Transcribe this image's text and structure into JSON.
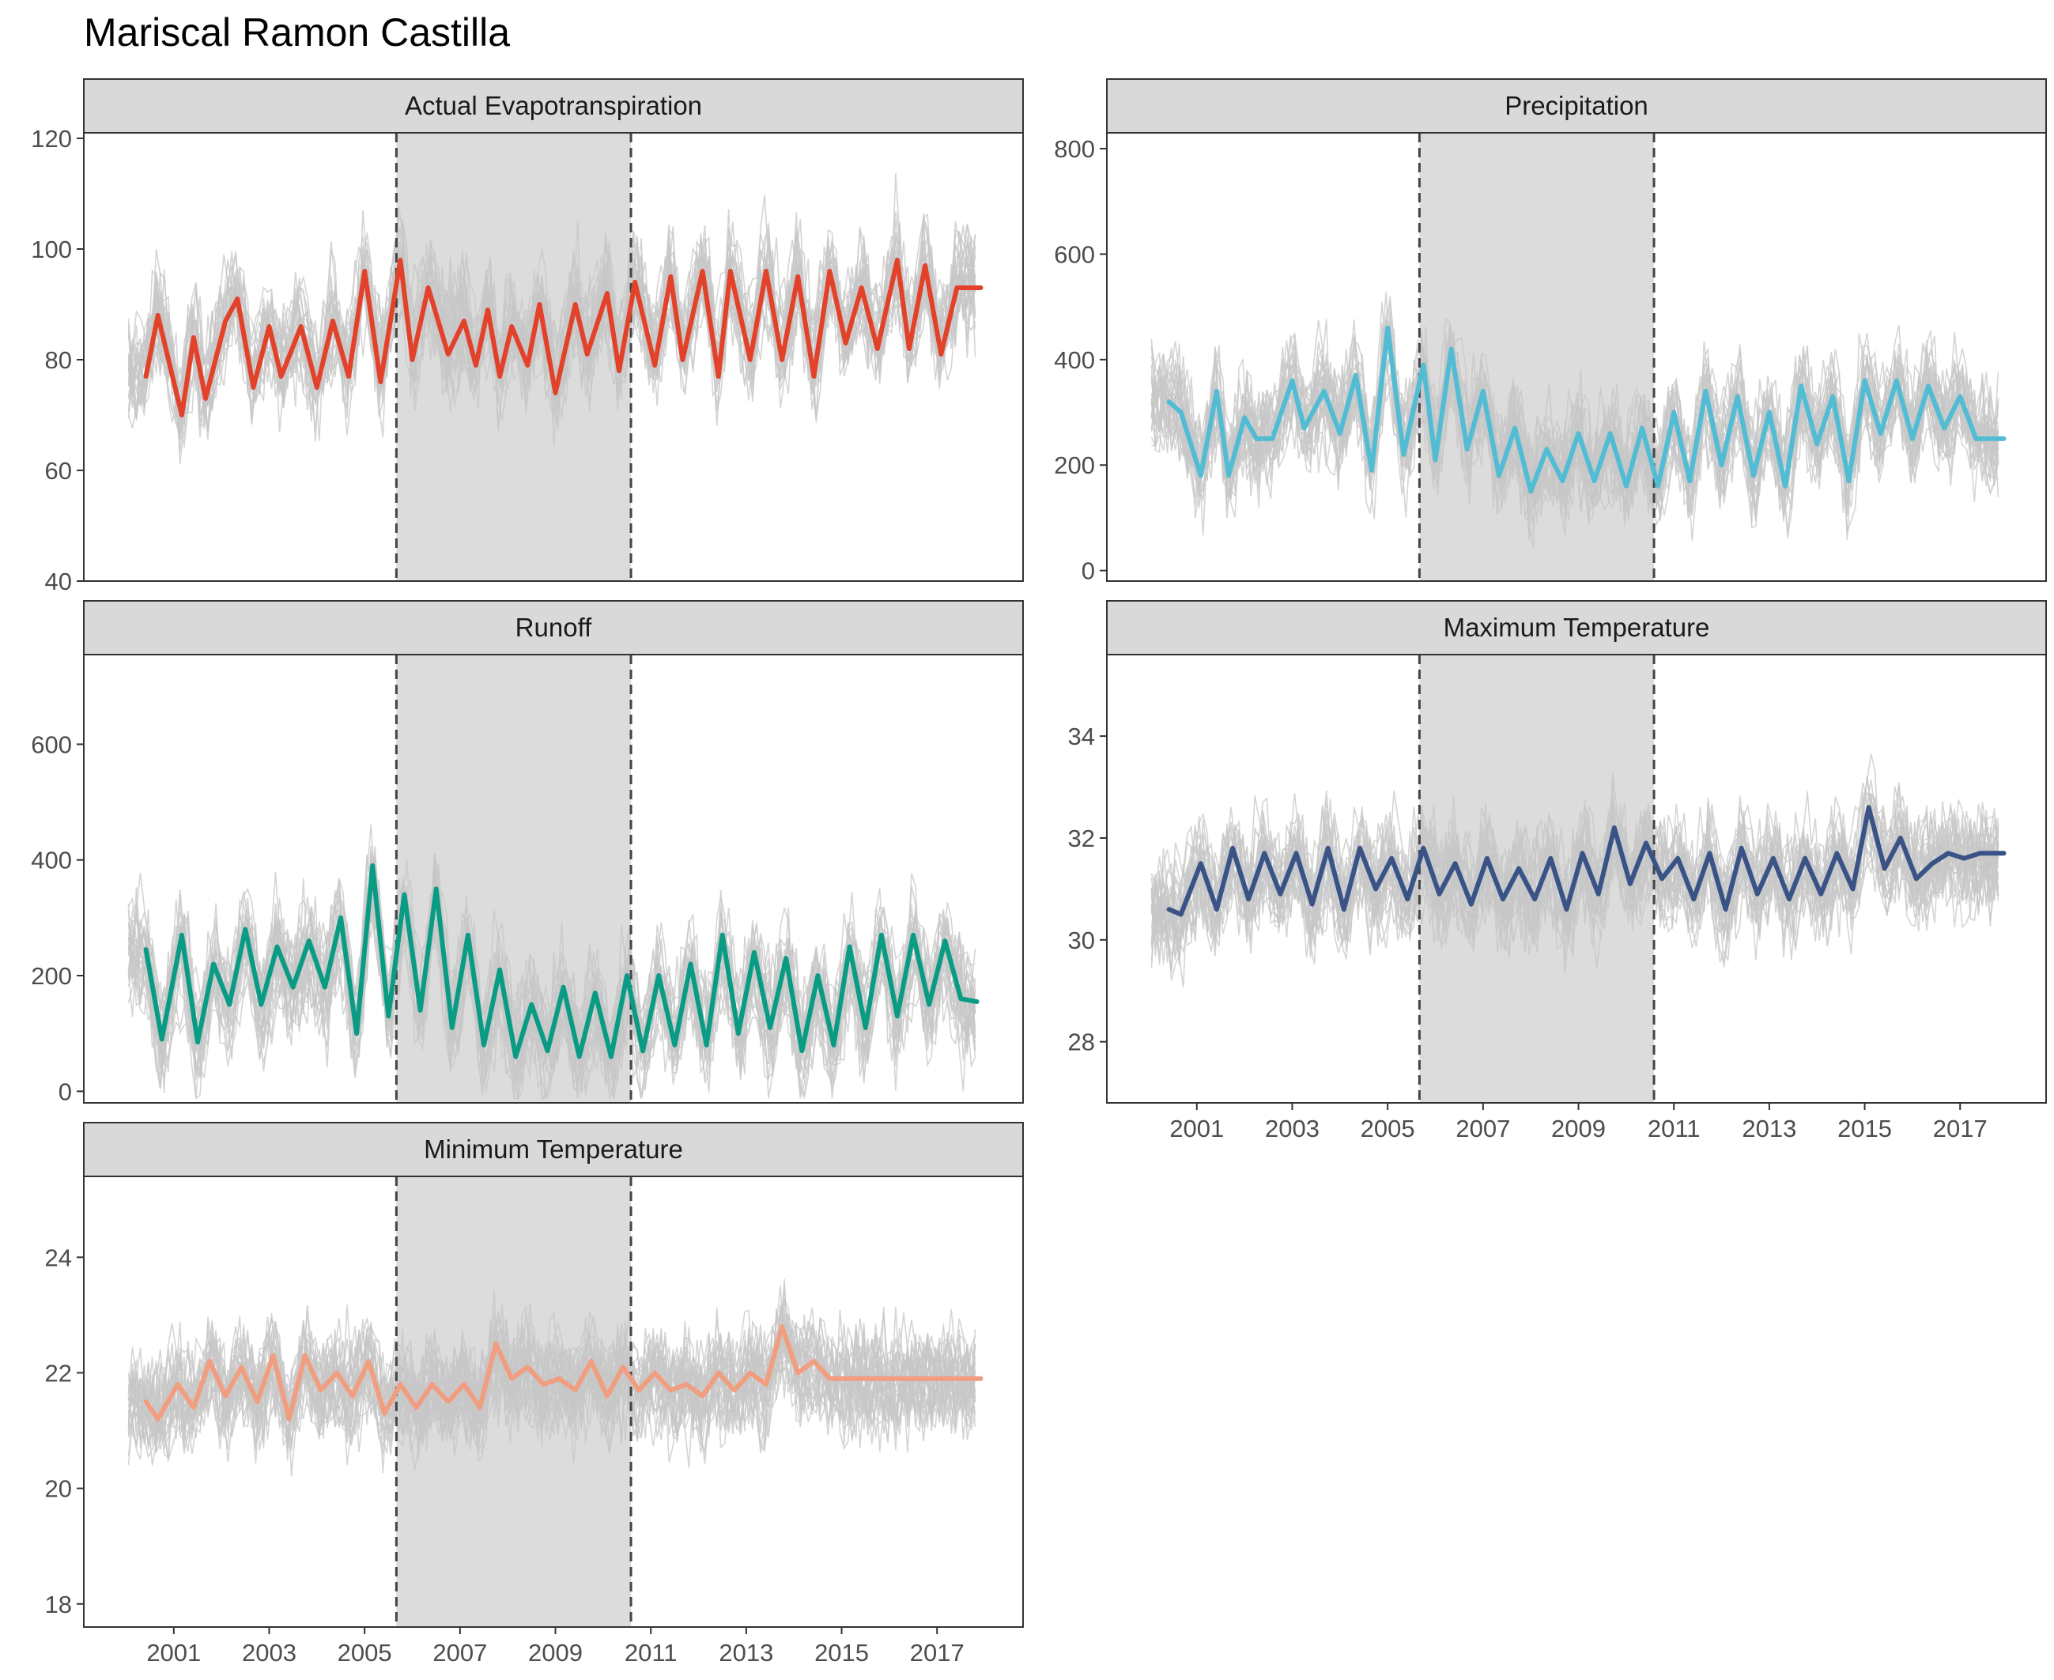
{
  "title": "Mariscal Ramon Castilla",
  "chart_data": {
    "type": "line",
    "title": "Mariscal Ramon Castilla",
    "x_range": [
      "2000-01",
      "2017-12"
    ],
    "shaded_period": {
      "start": "2005-09",
      "end": "2010-08",
      "fill": "#dcdcdc"
    },
    "dashed_lines": [
      "2005-09",
      "2010-08"
    ],
    "x_ticks": [
      "2001",
      "2003",
      "2005",
      "2007",
      "2009",
      "2011",
      "2013",
      "2015",
      "2017"
    ],
    "background_lines_color": "#c7c7c7",
    "panels": [
      {
        "name": "Actual Evapotranspiration",
        "color": "#e2412a",
        "ylim": [
          40,
          121
        ],
        "y_ticks": [
          40,
          60,
          80,
          100,
          120
        ],
        "x": [
          "2000-06",
          "2000-09",
          "2001-03",
          "2001-06",
          "2001-09",
          "2002-02",
          "2002-05",
          "2002-09",
          "2003-01",
          "2003-04",
          "2003-09",
          "2004-01",
          "2004-05",
          "2004-09",
          "2005-01",
          "2005-05",
          "2005-10",
          "2006-01",
          "2006-05",
          "2006-10",
          "2007-02",
          "2007-05",
          "2007-08",
          "2007-11",
          "2008-02",
          "2008-06",
          "2008-09",
          "2009-01",
          "2009-06",
          "2009-09",
          "2010-02",
          "2010-05",
          "2010-09",
          "2011-02",
          "2011-06",
          "2011-09",
          "2012-02",
          "2012-06",
          "2012-09",
          "2013-02",
          "2013-06",
          "2013-10",
          "2014-02",
          "2014-06",
          "2014-10",
          "2015-02",
          "2015-06",
          "2015-10",
          "2016-03",
          "2016-06",
          "2016-10",
          "2017-02",
          "2017-06",
          "2017-09",
          "2017-12"
        ],
        "y": [
          77,
          88,
          70,
          84,
          73,
          87,
          91,
          75,
          86,
          77,
          86,
          75,
          87,
          77,
          96,
          76,
          98,
          80,
          93,
          81,
          87,
          79,
          89,
          77,
          86,
          79,
          90,
          74,
          90,
          81,
          92,
          78,
          94,
          79,
          95,
          80,
          96,
          77,
          96,
          80,
          96,
          80,
          95,
          77,
          96,
          83,
          93,
          82,
          98,
          82,
          97,
          81,
          93,
          93,
          93
        ]
      },
      {
        "name": "Precipitation",
        "color": "#52bcd4",
        "ylim": [
          -20,
          830
        ],
        "y_ticks": [
          0,
          200,
          400,
          600,
          800
        ],
        "x": [
          "2000-06",
          "2000-09",
          "2001-02",
          "2001-06",
          "2001-09",
          "2002-01",
          "2002-04",
          "2002-08",
          "2003-01",
          "2003-04",
          "2003-09",
          "2004-01",
          "2004-05",
          "2004-09",
          "2005-01",
          "2005-05",
          "2005-10",
          "2006-01",
          "2006-05",
          "2006-09",
          "2007-01",
          "2007-05",
          "2007-09",
          "2008-01",
          "2008-05",
          "2008-09",
          "2009-01",
          "2009-05",
          "2009-09",
          "2010-01",
          "2010-05",
          "2010-09",
          "2011-01",
          "2011-05",
          "2011-09",
          "2012-01",
          "2012-05",
          "2012-09",
          "2013-01",
          "2013-05",
          "2013-09",
          "2014-01",
          "2014-05",
          "2014-09",
          "2015-01",
          "2015-05",
          "2015-09",
          "2016-01",
          "2016-05",
          "2016-09",
          "2017-01",
          "2017-05",
          "2017-09",
          "2017-12"
        ],
        "y": [
          320,
          300,
          180,
          340,
          180,
          290,
          250,
          250,
          360,
          270,
          340,
          260,
          370,
          190,
          460,
          220,
          390,
          210,
          420,
          230,
          340,
          180,
          270,
          150,
          230,
          170,
          260,
          170,
          260,
          160,
          270,
          160,
          300,
          170,
          340,
          200,
          330,
          180,
          300,
          160,
          350,
          240,
          330,
          170,
          360,
          260,
          360,
          250,
          350,
          270,
          330,
          250,
          250,
          250
        ]
      },
      {
        "name": "Runoff",
        "color": "#0a9b85",
        "ylim": [
          -20,
          755
        ],
        "y_ticks": [
          0,
          200,
          400,
          600
        ],
        "x": [
          "2000-06",
          "2000-10",
          "2001-03",
          "2001-07",
          "2001-11",
          "2002-03",
          "2002-07",
          "2002-11",
          "2003-03",
          "2003-07",
          "2003-11",
          "2004-03",
          "2004-07",
          "2004-11",
          "2005-03",
          "2005-07",
          "2005-11",
          "2006-03",
          "2006-07",
          "2006-11",
          "2007-03",
          "2007-07",
          "2007-11",
          "2008-03",
          "2008-07",
          "2008-11",
          "2009-03",
          "2009-07",
          "2009-11",
          "2010-03",
          "2010-07",
          "2010-11",
          "2011-03",
          "2011-07",
          "2011-11",
          "2012-03",
          "2012-07",
          "2012-11",
          "2013-03",
          "2013-07",
          "2013-11",
          "2014-03",
          "2014-07",
          "2014-11",
          "2015-03",
          "2015-07",
          "2015-11",
          "2016-03",
          "2016-07",
          "2016-11",
          "2017-03",
          "2017-07",
          "2017-11"
        ],
        "y": [
          245,
          90,
          270,
          85,
          220,
          150,
          280,
          150,
          250,
          180,
          260,
          180,
          300,
          100,
          390,
          130,
          340,
          140,
          350,
          110,
          270,
          80,
          210,
          60,
          150,
          70,
          180,
          60,
          170,
          60,
          200,
          70,
          200,
          80,
          220,
          80,
          270,
          100,
          240,
          110,
          230,
          70,
          200,
          80,
          250,
          110,
          270,
          130,
          270,
          150,
          260,
          160,
          155
        ]
      },
      {
        "name": "Maximum Temperature",
        "color": "#3a5386",
        "ylim": [
          26.8,
          35.6
        ],
        "y_ticks": [
          28,
          30,
          32,
          34
        ],
        "x": [
          "2000-06",
          "2000-09",
          "2001-02",
          "2001-06",
          "2001-10",
          "2002-02",
          "2002-06",
          "2002-10",
          "2003-02",
          "2003-06",
          "2003-10",
          "2004-02",
          "2004-06",
          "2004-10",
          "2005-02",
          "2005-06",
          "2005-10",
          "2006-02",
          "2006-06",
          "2006-10",
          "2007-02",
          "2007-06",
          "2007-10",
          "2008-02",
          "2008-06",
          "2008-10",
          "2009-02",
          "2009-06",
          "2009-10",
          "2010-02",
          "2010-06",
          "2010-10",
          "2011-02",
          "2011-06",
          "2011-10",
          "2012-02",
          "2012-06",
          "2012-10",
          "2013-02",
          "2013-06",
          "2013-10",
          "2014-02",
          "2014-06",
          "2014-10",
          "2015-02",
          "2015-06",
          "2015-10",
          "2016-02",
          "2016-06",
          "2016-10",
          "2017-02",
          "2017-06",
          "2017-10",
          "2017-12"
        ],
        "y": [
          30.6,
          30.5,
          31.5,
          30.6,
          31.8,
          30.8,
          31.7,
          30.9,
          31.7,
          30.7,
          31.8,
          30.6,
          31.8,
          31.0,
          31.6,
          30.8,
          31.8,
          30.9,
          31.5,
          30.7,
          31.6,
          30.8,
          31.4,
          30.8,
          31.6,
          30.6,
          31.7,
          30.9,
          32.2,
          31.1,
          31.9,
          31.2,
          31.6,
          30.8,
          31.7,
          30.6,
          31.8,
          30.9,
          31.6,
          30.8,
          31.6,
          30.9,
          31.7,
          31.0,
          32.6,
          31.4,
          32.0,
          31.2,
          31.5,
          31.7,
          31.6,
          31.7,
          31.7,
          31.7
        ]
      },
      {
        "name": "Minimum Temperature",
        "color": "#f19d7f",
        "ylim": [
          17.6,
          25.4
        ],
        "y_ticks": [
          18,
          20,
          22,
          24
        ],
        "x": [
          "2000-06",
          "2000-09",
          "2001-02",
          "2001-06",
          "2001-10",
          "2002-02",
          "2002-06",
          "2002-10",
          "2003-02",
          "2003-06",
          "2003-10",
          "2004-02",
          "2004-06",
          "2004-10",
          "2005-02",
          "2005-06",
          "2005-10",
          "2006-02",
          "2006-06",
          "2006-10",
          "2007-02",
          "2007-06",
          "2007-10",
          "2008-02",
          "2008-06",
          "2008-10",
          "2009-02",
          "2009-06",
          "2009-10",
          "2010-02",
          "2010-06",
          "2010-10",
          "2011-02",
          "2011-06",
          "2011-10",
          "2012-02",
          "2012-06",
          "2012-10",
          "2013-02",
          "2013-06",
          "2013-10",
          "2014-02",
          "2014-06",
          "2014-10",
          "2015-02",
          "2015-06",
          "2015-10",
          "2016-02",
          "2016-06",
          "2016-10",
          "2017-02",
          "2017-06",
          "2017-10",
          "2017-12"
        ],
        "y": [
          21.5,
          21.2,
          21.8,
          21.4,
          22.2,
          21.6,
          22.1,
          21.5,
          22.3,
          21.2,
          22.3,
          21.7,
          22.0,
          21.6,
          22.2,
          21.3,
          21.8,
          21.4,
          21.8,
          21.5,
          21.8,
          21.4,
          22.5,
          21.9,
          22.1,
          21.8,
          21.9,
          21.7,
          22.2,
          21.6,
          22.1,
          21.7,
          22.0,
          21.7,
          21.8,
          21.6,
          22.0,
          21.7,
          22.0,
          21.8,
          22.8,
          22.0,
          22.2,
          21.9,
          21.9,
          21.9,
          21.9,
          21.9,
          21.9,
          21.9,
          21.9,
          21.9,
          21.9,
          21.9
        ]
      }
    ]
  }
}
